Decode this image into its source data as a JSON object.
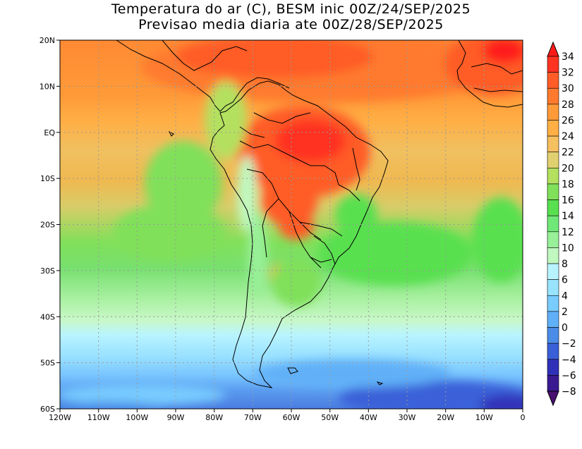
{
  "title_line1": "Temperatura do ar (C), BESM inic 00Z/24/SEP/2025",
  "title_line2": "Previsao media diaria ate 00Z/28/SEP/2025",
  "map": {
    "lon_range": [
      -120,
      0
    ],
    "lat_range": [
      -60,
      20
    ],
    "lat_labels": [
      "20N",
      "10N",
      "EQ",
      "10S",
      "20S",
      "30S",
      "40S",
      "50S",
      "60S"
    ],
    "lon_labels": [
      "120W",
      "110W",
      "100W",
      "90W",
      "80W",
      "70W",
      "60W",
      "50W",
      "40W",
      "30W",
      "20W",
      "10W",
      "0"
    ]
  },
  "colorbar": {
    "labels": [
      "34",
      "32",
      "30",
      "28",
      "26",
      "24",
      "22",
      "20",
      "18",
      "16",
      "14",
      "12",
      "10",
      "8",
      "6",
      "4",
      "2",
      "0",
      "−2",
      "−4",
      "−6",
      "−8"
    ],
    "colors": [
      "#ff1a1a",
      "#ff3322",
      "#ff5c28",
      "#ff7a2e",
      "#ff9a38",
      "#ffaf45",
      "#f5c060",
      "#e0d070",
      "#b4e060",
      "#80e05a",
      "#58e050",
      "#70e878",
      "#98f098",
      "#c0f8c0",
      "#b8f4ff",
      "#98e4ff",
      "#78ccff",
      "#60b0f8",
      "#4a8ce8",
      "#3a60d8",
      "#3030b8",
      "#3a1a90",
      "#4a1070"
    ]
  }
}
